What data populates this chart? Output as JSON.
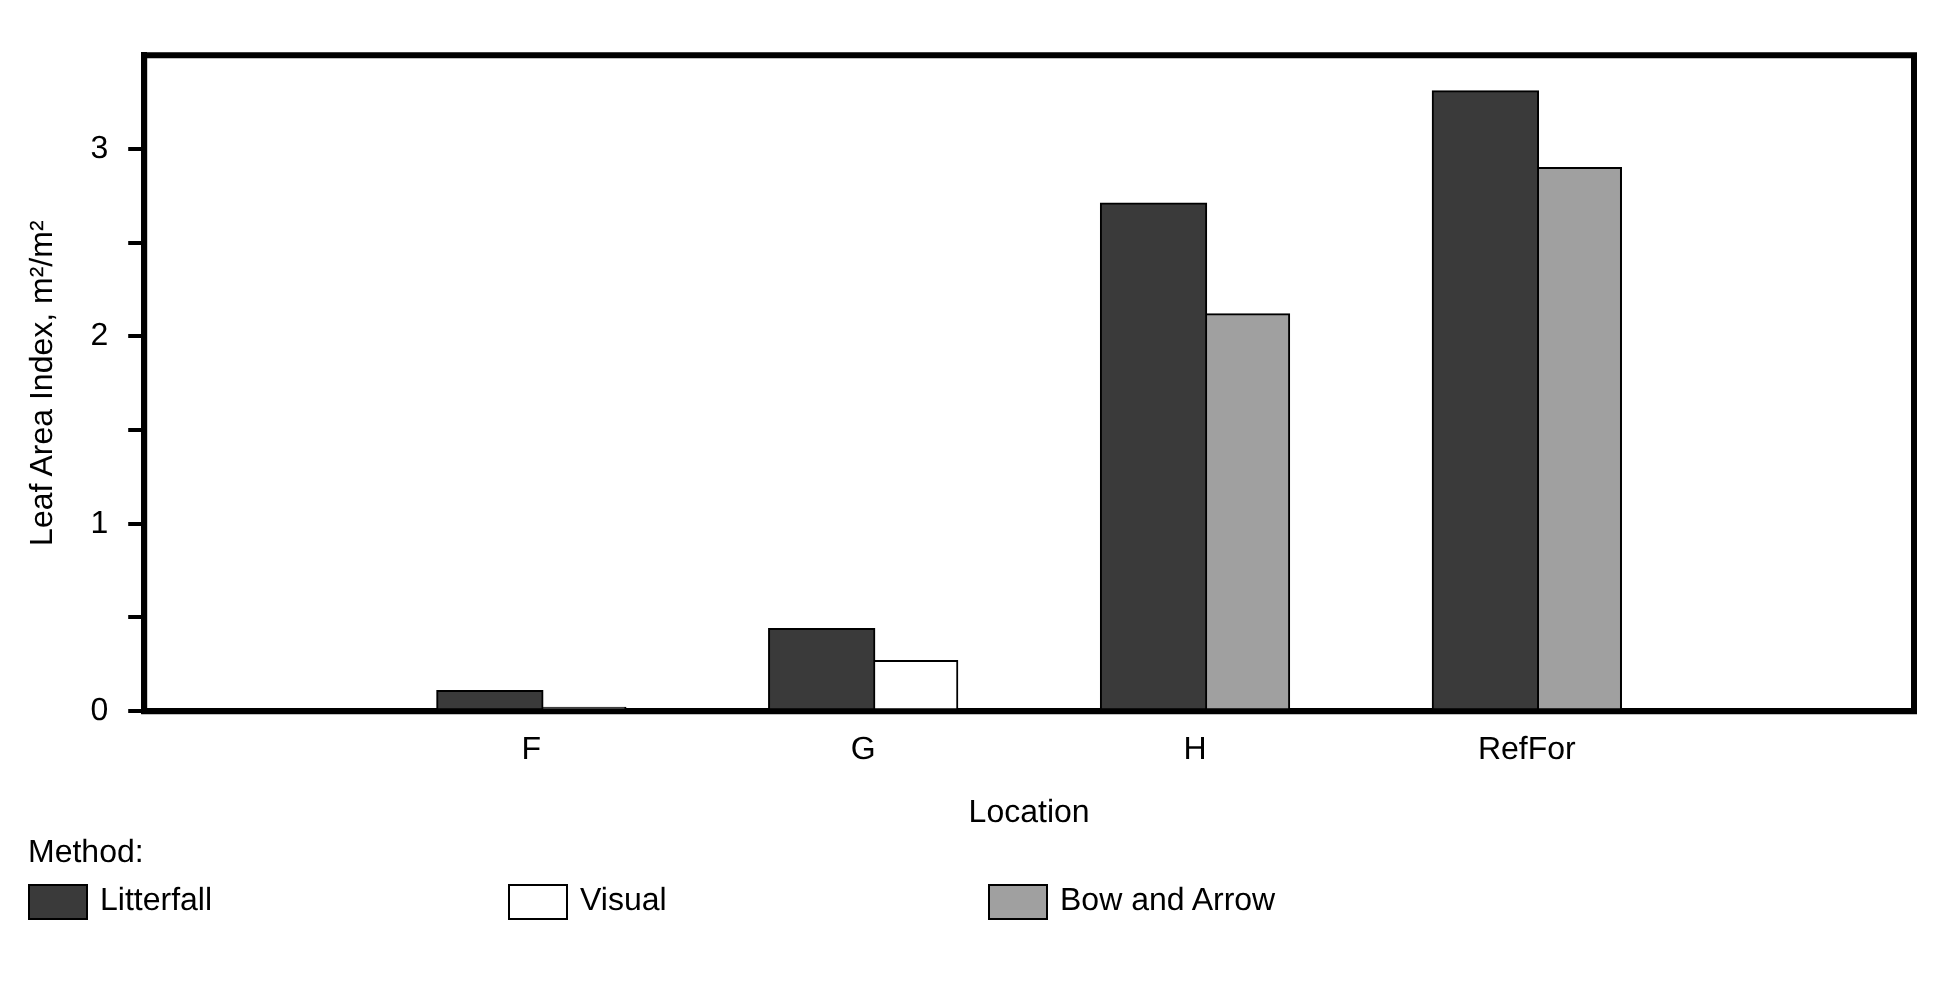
{
  "chart_data": {
    "type": "bar",
    "xlabel": "Location",
    "ylabel": "Leaf Area Index, m²/m²",
    "legend_title": "Method:",
    "legend": "bottom",
    "grid": false,
    "categories": [
      "F",
      "G",
      "H",
      "RefFor"
    ],
    "series": [
      {
        "name": "Litterfall",
        "color": "#3a3a3a",
        "values": [
          0.11,
          0.44,
          2.71,
          3.31
        ]
      },
      {
        "name": "Visual",
        "color": "#ffffff",
        "values": [
          0.02,
          0.27,
          null,
          null
        ]
      },
      {
        "name": "Bow and Arrow",
        "color": "#a0a0a0",
        "values": [
          null,
          null,
          2.12,
          2.9
        ]
      }
    ],
    "ylim": [
      0,
      3.5
    ],
    "yticks": [
      0,
      {
        "value": 0.5,
        "label": null
      },
      1,
      {
        "value": 1.5,
        "label": null
      },
      2,
      {
        "value": 2.5,
        "label": null
      },
      3
    ]
  }
}
